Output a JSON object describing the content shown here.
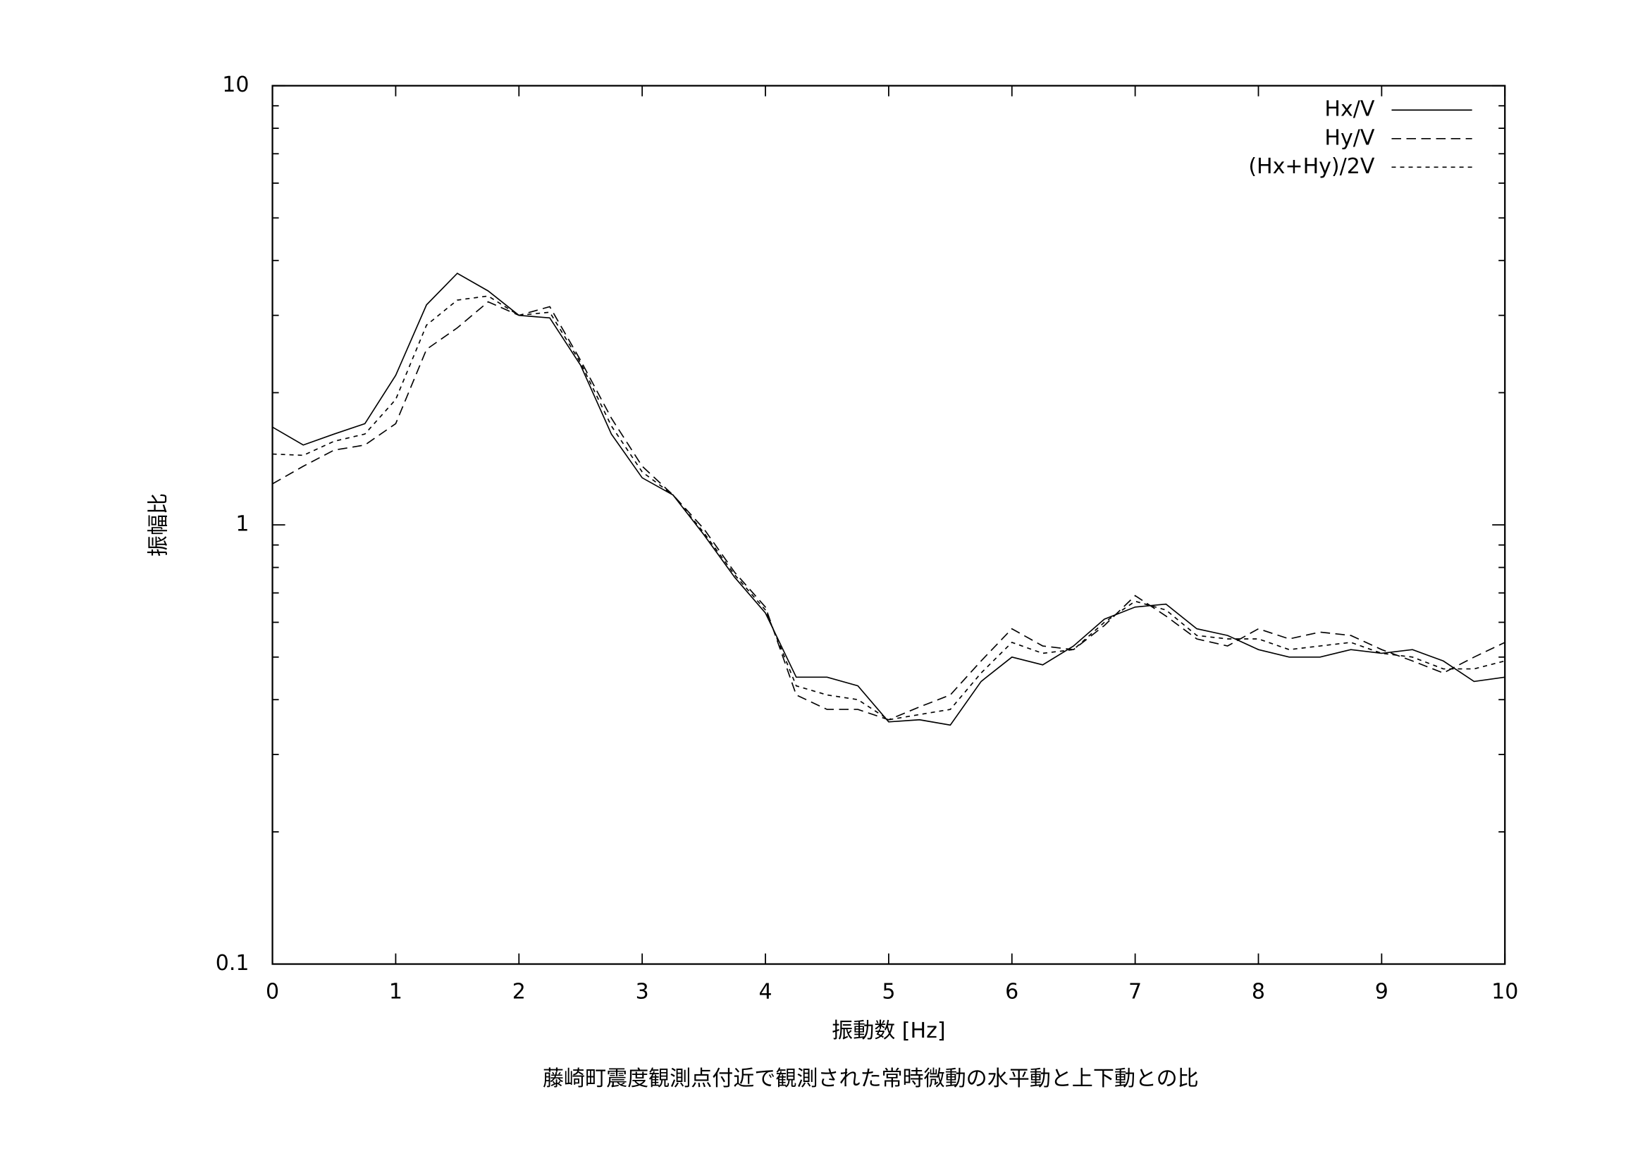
{
  "chart_data": {
    "type": "line",
    "caption": "藤崎町震度観測点付近で観測された常時微動の水平動と上下動との比",
    "xlabel": "振動数 [Hz]",
    "ylabel": "振幅比",
    "x": [
      0,
      0.25,
      0.5,
      0.75,
      1,
      1.25,
      1.5,
      1.75,
      2,
      2.25,
      2.5,
      2.75,
      3,
      3.25,
      3.5,
      3.75,
      4,
      4.25,
      4.5,
      4.75,
      5,
      5.25,
      5.5,
      5.75,
      6,
      6.25,
      6.5,
      6.75,
      7,
      7.25,
      7.5,
      7.75,
      8,
      8.25,
      8.5,
      8.75,
      9,
      9.25,
      9.5,
      9.75,
      10
    ],
    "series": [
      {
        "name": "Hx/V",
        "color": "#000000",
        "dash": "solid",
        "values": [
          1.67,
          1.52,
          1.61,
          1.7,
          2.19,
          3.17,
          3.74,
          3.41,
          3.0,
          2.96,
          2.31,
          1.61,
          1.28,
          1.17,
          0.95,
          0.76,
          0.63,
          0.45,
          0.45,
          0.43,
          0.356,
          0.36,
          0.35,
          0.44,
          0.5,
          0.48,
          0.53,
          0.61,
          0.65,
          0.66,
          0.58,
          0.56,
          0.52,
          0.5,
          0.5,
          0.52,
          0.51,
          0.52,
          0.49,
          0.44,
          0.45
        ]
      },
      {
        "name": "Hy/V",
        "color": "#000000",
        "dash": "long",
        "values": [
          1.24,
          1.36,
          1.48,
          1.52,
          1.7,
          2.51,
          2.81,
          3.22,
          3.0,
          3.14,
          2.37,
          1.75,
          1.36,
          1.17,
          0.98,
          0.78,
          0.65,
          0.41,
          0.38,
          0.38,
          0.36,
          0.385,
          0.41,
          0.49,
          0.58,
          0.53,
          0.52,
          0.59,
          0.69,
          0.62,
          0.55,
          0.53,
          0.58,
          0.55,
          0.57,
          0.56,
          0.52,
          0.49,
          0.46,
          0.5,
          0.54
        ]
      },
      {
        "name": "(Hx+Hy)/2V",
        "color": "#000000",
        "dash": "short",
        "values": [
          1.45,
          1.44,
          1.55,
          1.61,
          1.93,
          2.85,
          3.25,
          3.32,
          3.0,
          3.05,
          2.34,
          1.68,
          1.32,
          1.17,
          0.96,
          0.77,
          0.64,
          0.43,
          0.41,
          0.4,
          0.36,
          0.37,
          0.38,
          0.46,
          0.54,
          0.51,
          0.52,
          0.6,
          0.67,
          0.64,
          0.56,
          0.55,
          0.55,
          0.52,
          0.53,
          0.54,
          0.51,
          0.5,
          0.47,
          0.47,
          0.49
        ]
      }
    ],
    "xlim": [
      0,
      10
    ],
    "xticks": [
      0,
      1,
      2,
      3,
      4,
      5,
      6,
      7,
      8,
      9,
      10
    ],
    "ylim": [
      0.1,
      10
    ],
    "yticks": [
      0.1,
      1,
      10
    ],
    "ylog": true,
    "legend": "upper right"
  }
}
